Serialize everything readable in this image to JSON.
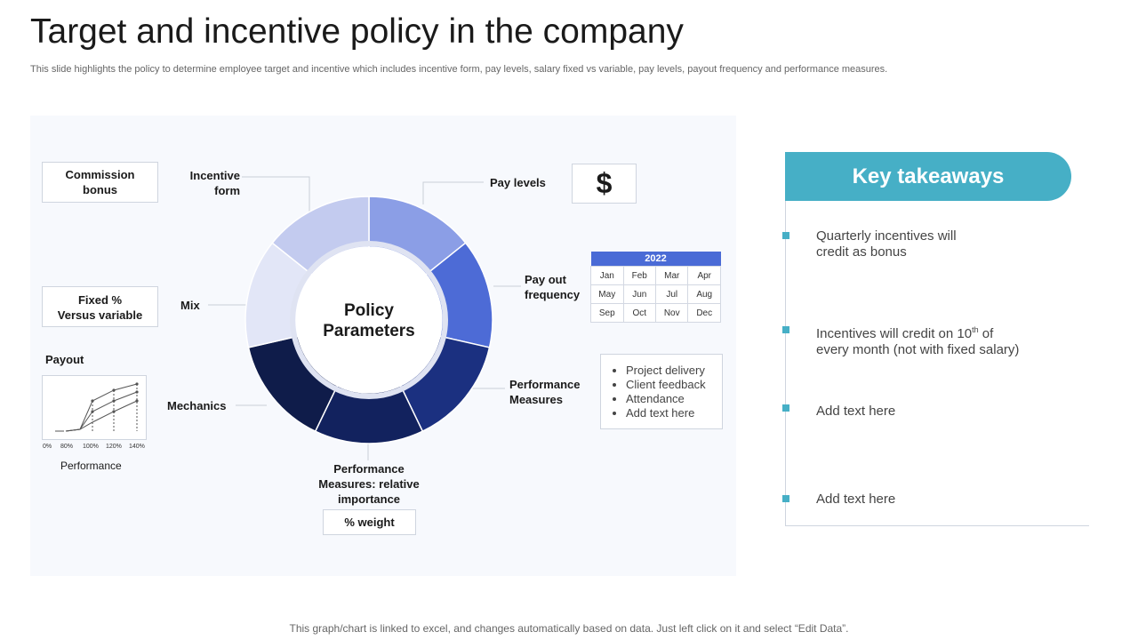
{
  "header": {
    "title": "Target and incentive policy in the company",
    "subtitle": "This slide highlights the policy to determine employee target and incentive which includes incentive form, pay levels, salary fixed vs variable, pay levels, payout frequency and performance measures."
  },
  "diagram": {
    "center_label_line1": "Policy",
    "center_label_line2": "Parameters",
    "segment_colors": [
      "#8b9ee6",
      "#4d6bd6",
      "#1b3080",
      "#12225e",
      "#0f1c4a",
      "#e2e6f7",
      "#c3cbef"
    ],
    "labels": {
      "incentive_form_line1": "Incentive",
      "incentive_form_line2": "form",
      "pay_levels": "Pay levels",
      "pay_out_line1": "Pay out",
      "pay_out_line2": "frequency",
      "performance_measures_line1": "Performance",
      "performance_measures_line2": "Measures",
      "relative_line1": "Performance",
      "relative_line2": "Measures: relative",
      "relative_line3": "importance",
      "mechanics": "Mechanics",
      "mix": "Mix",
      "payout": "Payout",
      "performance": "Performance"
    },
    "boxes": {
      "commission_line1": "Commission",
      "commission_line2": "bonus",
      "fixed_line1": "Fixed %",
      "fixed_line2": "Versus variable",
      "dollar_symbol": "$",
      "weight": "% weight"
    },
    "calendar": {
      "year": "2022",
      "rows": [
        [
          "Jan",
          "Feb",
          "Mar",
          "Apr"
        ],
        [
          "May",
          "Jun",
          "Jul",
          "Aug"
        ],
        [
          "Sep",
          "Oct",
          "Nov",
          "Dec"
        ]
      ]
    },
    "measures_list": [
      "Project delivery",
      "Client feedback",
      "Attendance",
      "Add text here"
    ],
    "payout_chart": {
      "x_ticks": [
        "0%",
        "80%",
        "100%",
        "120%",
        "140%"
      ]
    }
  },
  "takeaways": {
    "title": "Key takeaways",
    "item1_line1": "Quarterly incentives will",
    "item1_line2": "credit as bonus",
    "item2_pre": "Incentives will credit on 10",
    "item2_sup": "th",
    "item2_post": " of",
    "item2_line2": "every month (not with fixed salary)",
    "item3": "Add text here",
    "item4": "Add text here"
  },
  "footer": "This graph/chart is linked to excel,  and changes automatically based on data. Just left click on it and select “Edit Data”."
}
